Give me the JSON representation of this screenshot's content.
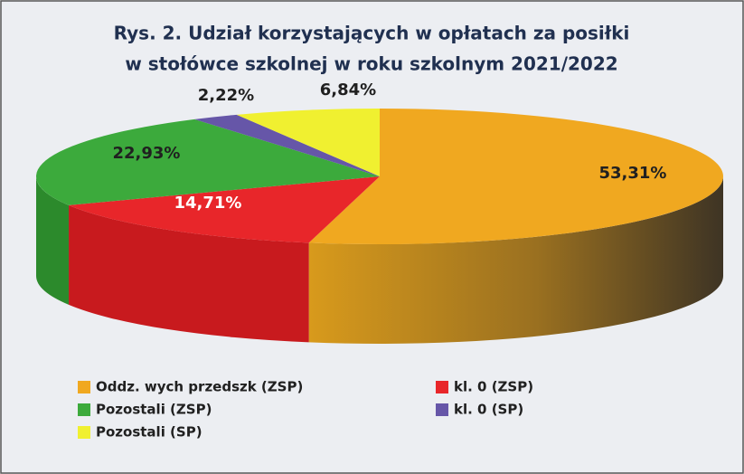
{
  "chart_data": {
    "type": "pie3d",
    "title": "Rys. 2. Udział korzystających w opłatach za posiłki",
    "subtitle": "w stołówce szkolnej w roku szkolnym 2021/2022",
    "categories": [
      "Oddz. wych przedszk (ZSP)",
      "kl. 0 (ZSP)",
      "Pozostali (ZSP)",
      "kl. 0 (SP)",
      "Pozostali (SP)"
    ],
    "values": [
      53.31,
      14.71,
      22.93,
      2.22,
      6.84
    ],
    "value_labels": [
      "53,31%",
      "14,71%",
      "22,93%",
      "2,22%",
      "6,84%"
    ],
    "colors": [
      "#f0a820",
      "#e8262a",
      "#3caa3c",
      "#6656a8",
      "#f0f030"
    ]
  }
}
